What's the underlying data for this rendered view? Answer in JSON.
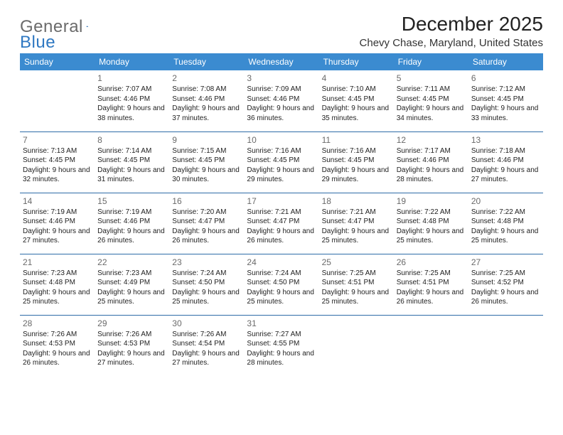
{
  "brand": {
    "part1": "General",
    "part2": "Blue"
  },
  "title": "December 2025",
  "location": "Chevy Chase, Maryland, United States",
  "header_bg": "#3b8bd0",
  "header_fg": "#ffffff",
  "rule_color": "#2f6ca8",
  "daynum_color": "#6a6a6a",
  "text_color": "#222222",
  "font_family": "Arial, Helvetica, sans-serif",
  "title_fontsize": 28,
  "location_fontsize": 15,
  "header_fontsize": 12,
  "cell_fontsize": 10,
  "weekdays": [
    "Sunday",
    "Monday",
    "Tuesday",
    "Wednesday",
    "Thursday",
    "Friday",
    "Saturday"
  ],
  "weeks": [
    [
      null,
      {
        "d": "1",
        "sr": "7:07 AM",
        "ss": "4:46 PM",
        "dl": "9 hours and 38 minutes."
      },
      {
        "d": "2",
        "sr": "7:08 AM",
        "ss": "4:46 PM",
        "dl": "9 hours and 37 minutes."
      },
      {
        "d": "3",
        "sr": "7:09 AM",
        "ss": "4:46 PM",
        "dl": "9 hours and 36 minutes."
      },
      {
        "d": "4",
        "sr": "7:10 AM",
        "ss": "4:45 PM",
        "dl": "9 hours and 35 minutes."
      },
      {
        "d": "5",
        "sr": "7:11 AM",
        "ss": "4:45 PM",
        "dl": "9 hours and 34 minutes."
      },
      {
        "d": "6",
        "sr": "7:12 AM",
        "ss": "4:45 PM",
        "dl": "9 hours and 33 minutes."
      }
    ],
    [
      {
        "d": "7",
        "sr": "7:13 AM",
        "ss": "4:45 PM",
        "dl": "9 hours and 32 minutes."
      },
      {
        "d": "8",
        "sr": "7:14 AM",
        "ss": "4:45 PM",
        "dl": "9 hours and 31 minutes."
      },
      {
        "d": "9",
        "sr": "7:15 AM",
        "ss": "4:45 PM",
        "dl": "9 hours and 30 minutes."
      },
      {
        "d": "10",
        "sr": "7:16 AM",
        "ss": "4:45 PM",
        "dl": "9 hours and 29 minutes."
      },
      {
        "d": "11",
        "sr": "7:16 AM",
        "ss": "4:45 PM",
        "dl": "9 hours and 29 minutes."
      },
      {
        "d": "12",
        "sr": "7:17 AM",
        "ss": "4:46 PM",
        "dl": "9 hours and 28 minutes."
      },
      {
        "d": "13",
        "sr": "7:18 AM",
        "ss": "4:46 PM",
        "dl": "9 hours and 27 minutes."
      }
    ],
    [
      {
        "d": "14",
        "sr": "7:19 AM",
        "ss": "4:46 PM",
        "dl": "9 hours and 27 minutes."
      },
      {
        "d": "15",
        "sr": "7:19 AM",
        "ss": "4:46 PM",
        "dl": "9 hours and 26 minutes."
      },
      {
        "d": "16",
        "sr": "7:20 AM",
        "ss": "4:47 PM",
        "dl": "9 hours and 26 minutes."
      },
      {
        "d": "17",
        "sr": "7:21 AM",
        "ss": "4:47 PM",
        "dl": "9 hours and 26 minutes."
      },
      {
        "d": "18",
        "sr": "7:21 AM",
        "ss": "4:47 PM",
        "dl": "9 hours and 25 minutes."
      },
      {
        "d": "19",
        "sr": "7:22 AM",
        "ss": "4:48 PM",
        "dl": "9 hours and 25 minutes."
      },
      {
        "d": "20",
        "sr": "7:22 AM",
        "ss": "4:48 PM",
        "dl": "9 hours and 25 minutes."
      }
    ],
    [
      {
        "d": "21",
        "sr": "7:23 AM",
        "ss": "4:48 PM",
        "dl": "9 hours and 25 minutes."
      },
      {
        "d": "22",
        "sr": "7:23 AM",
        "ss": "4:49 PM",
        "dl": "9 hours and 25 minutes."
      },
      {
        "d": "23",
        "sr": "7:24 AM",
        "ss": "4:50 PM",
        "dl": "9 hours and 25 minutes."
      },
      {
        "d": "24",
        "sr": "7:24 AM",
        "ss": "4:50 PM",
        "dl": "9 hours and 25 minutes."
      },
      {
        "d": "25",
        "sr": "7:25 AM",
        "ss": "4:51 PM",
        "dl": "9 hours and 25 minutes."
      },
      {
        "d": "26",
        "sr": "7:25 AM",
        "ss": "4:51 PM",
        "dl": "9 hours and 26 minutes."
      },
      {
        "d": "27",
        "sr": "7:25 AM",
        "ss": "4:52 PM",
        "dl": "9 hours and 26 minutes."
      }
    ],
    [
      {
        "d": "28",
        "sr": "7:26 AM",
        "ss": "4:53 PM",
        "dl": "9 hours and 26 minutes."
      },
      {
        "d": "29",
        "sr": "7:26 AM",
        "ss": "4:53 PM",
        "dl": "9 hours and 27 minutes."
      },
      {
        "d": "30",
        "sr": "7:26 AM",
        "ss": "4:54 PM",
        "dl": "9 hours and 27 minutes."
      },
      {
        "d": "31",
        "sr": "7:27 AM",
        "ss": "4:55 PM",
        "dl": "9 hours and 28 minutes."
      },
      null,
      null,
      null
    ]
  ],
  "labels": {
    "sunrise": "Sunrise:",
    "sunset": "Sunset:",
    "daylight": "Daylight:"
  }
}
